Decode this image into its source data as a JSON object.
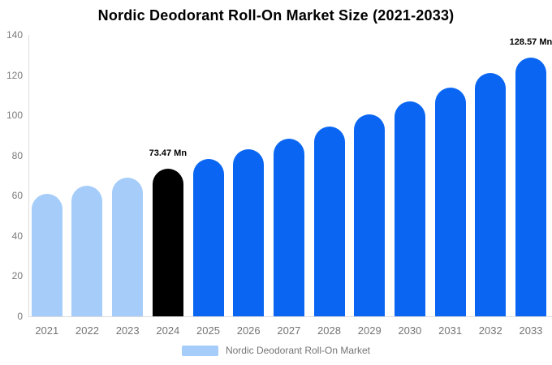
{
  "title": "Nordic Deodorant Roll-On Market Size (2021-2033)",
  "legend": {
    "label": "Nordic Deodorant Roll-On Market",
    "swatch_color": "#A6CDFA"
  },
  "colors": {
    "axis_line": "#DCDCDC",
    "tick_text": "#7A7A7A",
    "x_label_text": "#757575",
    "data_label_text": "#000000",
    "bar_past": "#A6CDFA",
    "bar_highlight": "#000000",
    "bar_forecast": "#0A66F2"
  },
  "chart_data": {
    "type": "bar",
    "title": "Nordic Deodorant Roll-On Market Size (2021-2033)",
    "categories": [
      "2021",
      "2022",
      "2023",
      "2024",
      "2025",
      "2026",
      "2027",
      "2028",
      "2029",
      "2030",
      "2031",
      "2032",
      "2033"
    ],
    "series": [
      {
        "name": "Nordic Deodorant Roll-On Market",
        "values": [
          60.96,
          64.87,
          69.04,
          73.47,
          78.19,
          83.21,
          88.55,
          94.24,
          100.29,
          106.73,
          113.58,
          120.87,
          128.57
        ]
      }
    ],
    "unit": "Mn",
    "bar_colors": [
      "#A6CDFA",
      "#A6CDFA",
      "#A6CDFA",
      "#000000",
      "#0A66F2",
      "#0A66F2",
      "#0A66F2",
      "#0A66F2",
      "#0A66F2",
      "#0A66F2",
      "#0A66F2",
      "#0A66F2",
      "#0A66F2"
    ],
    "data_labels": [
      {
        "index": 3,
        "text": "73.47 Mn"
      },
      {
        "index": 12,
        "text": "128.57 Mn"
      }
    ],
    "xlabel": "",
    "ylabel": "",
    "ylim": [
      0,
      140
    ],
    "yticks": [
      0,
      20,
      40,
      60,
      80,
      100,
      120,
      140
    ],
    "grid": false,
    "legend_position": "bottom"
  }
}
